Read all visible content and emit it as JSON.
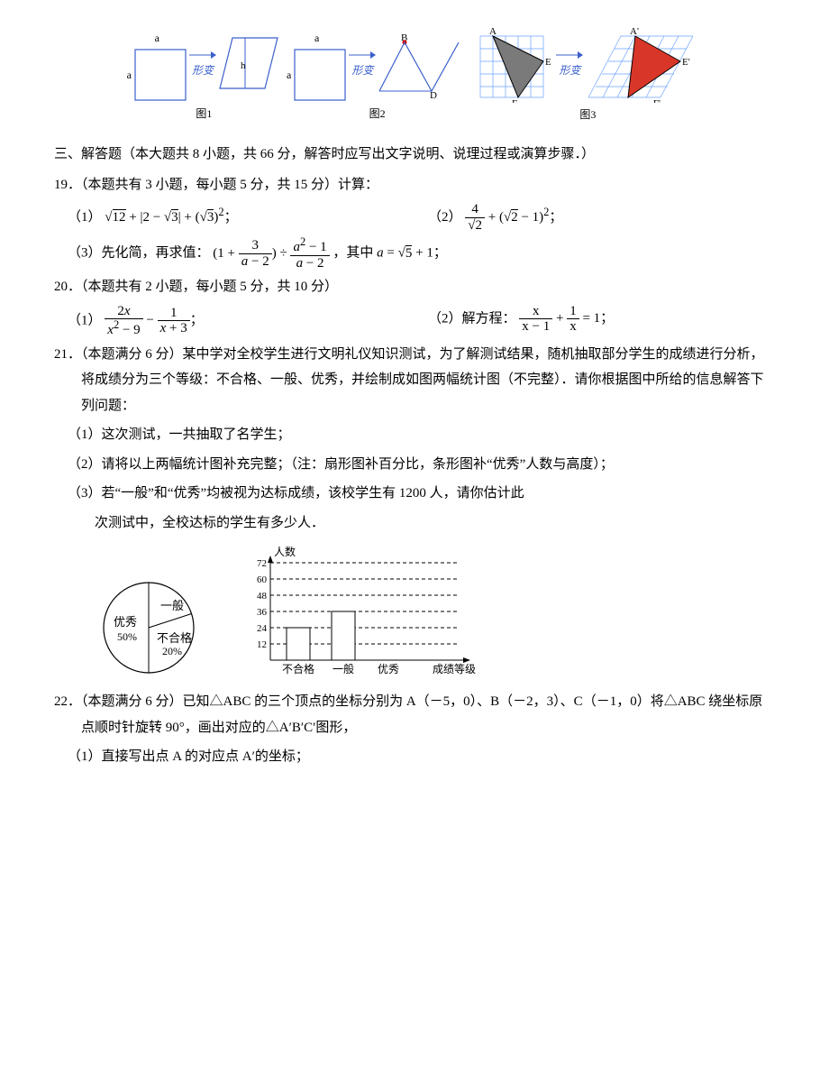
{
  "figures": {
    "fig1": {
      "side_label": "a",
      "transform_label": "形变",
      "height_label": "h",
      "caption": "图1"
    },
    "fig2": {
      "side_label": "a",
      "transform_label": "形变",
      "vertex_b": "B",
      "vertex_d": "D",
      "caption": "图2"
    },
    "fig3": {
      "A": "A",
      "E": "E",
      "F": "F",
      "Ap": "A'",
      "Ep": "E'",
      "Fp": "F'",
      "transform_label": "形变",
      "caption": "图3"
    }
  },
  "section3_heading": "三、解答题（本大题共 8 小题，共 66 分，解答时应写出文字说明、说理过程或演算步骤．）",
  "q19": {
    "stem": "19．（本题共有 3 小题，每小题 5 分，共 15 分）计算：",
    "p1_label": "（1）",
    "p2_label": "（2）",
    "p3_label": "（3）先化简，再求值：",
    "p3_tail": "，其中",
    "p3_tail2": "；"
  },
  "q20": {
    "stem": "20．（本题共有 2 小题，每小题 5 分，共 10 分）",
    "p1_label": "（1）",
    "p2_label": "（2）解方程："
  },
  "q21": {
    "stem": "21．（本题满分 6 分）某中学对全校学生进行文明礼仪知识测试，为了解测试结果，随机抽取部分学生的成绩进行分析，将成绩分为三个等级：不合格、一般、优秀，并绘制成如图两幅统计图（不完整）．请你根据图中所给的信息解答下列问题：",
    "p1": "（1）这次测试，一共抽取了名学生；",
    "p2": "（2）请将以上两幅统计图补充完整；（注：扇形图补百分比，条形图补“优秀”人数与高度）；",
    "p3a": "（3）若“一般”和“优秀”均被视为达标成绩，该校学生有 1200 人，请你估计此",
    "p3b": "次测试中，全校达标的学生有多少人．"
  },
  "pie": {
    "labels": {
      "excellent": "优秀",
      "excellent_pct": "50%",
      "normal": "一般",
      "fail": "不合格",
      "fail_pct": "20%"
    },
    "colors": {
      "stroke": "#000000",
      "fill": "#ffffff"
    }
  },
  "bar": {
    "y_label": "人数",
    "x_label": "成绩等级",
    "y_ticks": [
      "12",
      "24",
      "36",
      "48",
      "60",
      "72"
    ],
    "categories": [
      "不合格",
      "一般",
      "优秀"
    ],
    "values": [
      24,
      36,
      0
    ],
    "y_max": 72,
    "bar_color": "#ffffff",
    "bar_stroke": "#000000",
    "grid_color": "#000000"
  },
  "q22": {
    "stem": "22．（本题满分 6 分）已知△ABC 的三个顶点的坐标分别为 A（－5，0）、B（－2，3）、C（－1，0）将△ABC 绕坐标原点顺时针旋转 90°，画出对应的△A′B′C′图形，",
    "p1": "（1）直接写出点 A 的对应点 A′的坐标；"
  }
}
